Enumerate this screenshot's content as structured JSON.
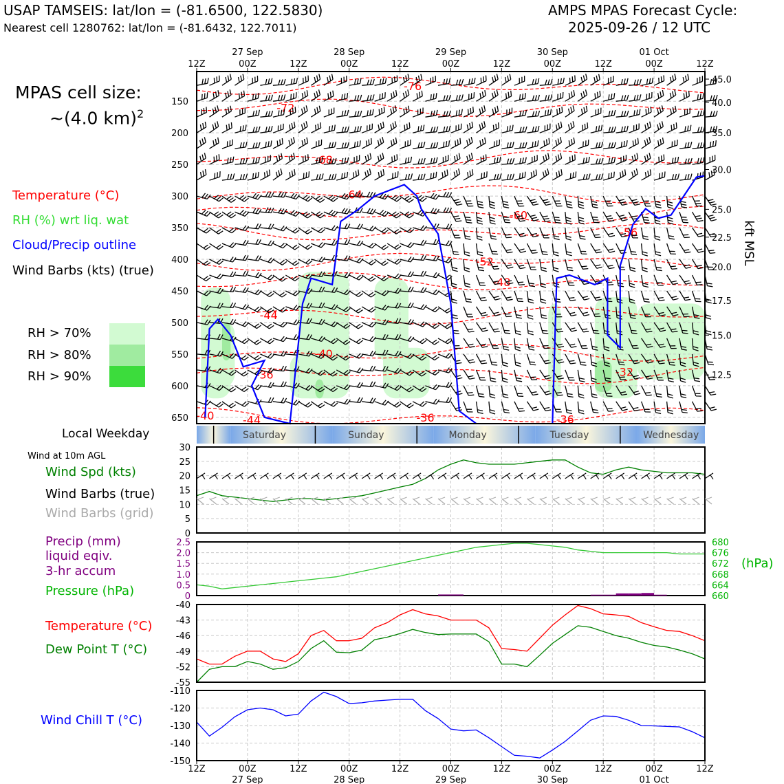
{
  "header": {
    "station": "USAP TAMSEIS: lat/lon = (-81.6500, 122.5830)",
    "nearest": "Nearest cell 1280762: lat/lon = (-81.6432, 122.7011)",
    "cycle_title": "AMPS MPAS Forecast Cycle:",
    "cycle_time": "2025-09-26 / 12 UTC"
  },
  "cell_size": {
    "line1": "MPAS cell size:",
    "line2": "~(4.0 km)",
    "exp": "2"
  },
  "legend_main": {
    "temperature": "Temperature (°C)",
    "rh": "RH (%) wrt liq. wat",
    "cloud": "Cloud/Precip outline",
    "wind": "Wind Barbs (kts) (true)"
  },
  "rh_legend": [
    {
      "label": "RH > 70%",
      "color": "#d2fad2"
    },
    {
      "label": "RH > 80%",
      "color": "#a0eba0"
    },
    {
      "label": "RH > 90%",
      "color": "#3cdc3c"
    }
  ],
  "colors": {
    "temp": "#ff0000",
    "rh": "#32dc32",
    "cloud": "#0000ff",
    "wind": "#000000",
    "grid_wind": "#aaaaaa",
    "precip": "#800080",
    "pressure": "#00b400",
    "dewpoint": "#008000",
    "windchill": "#0000ff"
  },
  "time_axis": {
    "top_ticks": [
      "12Z",
      "00Z",
      "12Z",
      "00Z",
      "12Z",
      "00Z",
      "12Z",
      "00Z",
      "12Z",
      "00Z",
      "12Z"
    ],
    "dates": [
      "27 Sep",
      "28 Sep",
      "29 Sep",
      "30 Sep",
      "01 Oct"
    ],
    "bottom_ticks": [
      "12Z",
      "00Z",
      "12Z",
      "00Z",
      "12Z",
      "00Z",
      "12Z",
      "00Z",
      "12Z",
      "00Z",
      "12Z"
    ]
  },
  "weekday": {
    "title": "Local Weekday",
    "days": [
      "Saturday",
      "Sunday",
      "Monday",
      "Tuesday",
      "Wednesday"
    ]
  },
  "panel_wind": {
    "title": "Wind at 10m AGL",
    "legend_speed": "Wind Spd (kts)",
    "legend_true": "Wind Barbs (true)",
    "legend_grid": "Wind Barbs (grid)"
  },
  "panel_precip": {
    "legend_precip_1": "Precip (mm)",
    "legend_precip_2": "liquid eqiv.",
    "legend_precip_3": "3-hr accum",
    "legend_pressure": "Pressure (hPa)",
    "right_unit": "(hPa)"
  },
  "panel_temp": {
    "legend_temp": "Temperature (°C)",
    "legend_dew": "Dew Point T (°C)"
  },
  "panel_chill": {
    "legend": "Wind Chill T (°C)"
  },
  "right_axis_label": "kft MSL",
  "chart_data": [
    {
      "type": "heatmap",
      "name": "vertical cross-section",
      "x_hours": [
        0,
        120
      ],
      "pressure_ticks": [
        "150",
        "200",
        "250",
        "300",
        "350",
        "400",
        "450",
        "500",
        "550",
        "600",
        "650"
      ],
      "pressure_values": [
        150,
        200,
        250,
        300,
        350,
        400,
        450,
        500,
        550,
        600,
        650
      ],
      "ylim_hpa": [
        103,
        660
      ],
      "height_ticks": [
        "45.0",
        "40.0",
        "35.0",
        "30.0",
        "25.0",
        "22.5",
        "20.0",
        "17.5",
        "15.0",
        "12.5"
      ],
      "height_ticks_hpa": [
        115,
        152,
        200,
        258,
        321,
        365,
        412,
        465,
        520,
        583
      ],
      "temperature_labels": [
        {
          "text": "-76",
          "t": 51,
          "p": 126
        },
        {
          "text": "-72",
          "t": 21,
          "p": 160
        },
        {
          "text": "-68",
          "t": 30,
          "p": 242
        },
        {
          "text": "-64",
          "t": 37,
          "p": 297
        },
        {
          "text": "-60",
          "t": 76,
          "p": 330
        },
        {
          "text": "-56",
          "t": 102,
          "p": 357
        },
        {
          "text": "-52",
          "t": 68,
          "p": 403
        },
        {
          "text": "-48",
          "t": 72,
          "p": 436
        },
        {
          "text": "-44",
          "t": 17,
          "p": 488
        },
        {
          "text": "-40",
          "t": 30,
          "p": 549
        },
        {
          "text": "-36",
          "t": 16,
          "p": 582
        },
        {
          "text": "-32",
          "t": 101,
          "p": 578
        },
        {
          "text": "-40",
          "t": 2,
          "p": 647
        },
        {
          "text": "-36",
          "t": 54,
          "p": 650
        },
        {
          "text": "-36",
          "t": 87,
          "p": 653
        },
        {
          "text": "-44",
          "t": 13,
          "p": 654
        }
      ],
      "wind_barbs_true": "wind barbs every 3h at 25 hPa levels"
    },
    {
      "type": "line",
      "name": "10m wind",
      "ylim": [
        0,
        30
      ],
      "yticks": [
        "0",
        "5",
        "10",
        "15",
        "20",
        "25",
        "30"
      ],
      "x_hours": [
        0,
        3,
        6,
        9,
        12,
        15,
        18,
        21,
        24,
        27,
        30,
        33,
        36,
        39,
        42,
        45,
        48,
        51,
        54,
        57,
        60,
        63,
        66,
        69,
        72,
        75,
        78,
        81,
        84,
        87,
        90,
        93,
        96,
        99,
        102,
        105,
        108,
        111,
        114,
        117,
        120
      ],
      "series": [
        {
          "name": "Wind Spd (kts)",
          "values": [
            13,
            14.5,
            13,
            12.5,
            12,
            11.5,
            11,
            11.5,
            12,
            12,
            11.5,
            12,
            12.5,
            13,
            14,
            15,
            16,
            17,
            19,
            22,
            24,
            25.5,
            24.5,
            24,
            24,
            24,
            24.5,
            25,
            25.5,
            25.5,
            23,
            21,
            20.5,
            22,
            23,
            22,
            21.5,
            21,
            21,
            21,
            20.5
          ]
        }
      ]
    },
    {
      "type": "line",
      "name": "precip and pressure",
      "ylim_precip": [
        0,
        2.5
      ],
      "yticks_precip": [
        "0",
        "0.5",
        "1.0",
        "1.5",
        "2.0",
        "2.5"
      ],
      "ylim_pressure": [
        660,
        680
      ],
      "yticks_pressure": [
        "660",
        "664",
        "668",
        "672",
        "676",
        "680"
      ],
      "x_hours": [
        0,
        3,
        6,
        9,
        12,
        15,
        18,
        21,
        24,
        27,
        30,
        33,
        36,
        39,
        42,
        45,
        48,
        51,
        54,
        57,
        60,
        63,
        66,
        69,
        72,
        75,
        78,
        81,
        84,
        87,
        90,
        93,
        96,
        99,
        102,
        105,
        108,
        111,
        114,
        117,
        120
      ],
      "series": [
        {
          "name": "Pressure (hPa)",
          "values": [
            664,
            663.5,
            662.5,
            663,
            663.5,
            664,
            664.5,
            665,
            665.5,
            666,
            666.5,
            667,
            668,
            669,
            670,
            671,
            672,
            673,
            674,
            675,
            676,
            677,
            678,
            678.5,
            679,
            679.5,
            679.5,
            679,
            678.5,
            678,
            677,
            676.5,
            676,
            676,
            676,
            676,
            676,
            676,
            675.5,
            675.5,
            675.5
          ]
        },
        {
          "name": "Precip (mm)",
          "values": [
            0,
            0,
            0,
            0,
            0,
            0,
            0,
            0,
            0,
            0,
            0,
            0,
            0,
            0,
            0,
            0,
            0,
            0,
            0,
            0.05,
            0.05,
            0,
            0,
            0,
            0,
            0,
            0,
            0,
            0,
            0,
            0,
            0.04,
            0.04,
            0.1,
            0.1,
            0.12,
            0.04,
            0,
            0,
            0,
            0
          ]
        }
      ]
    },
    {
      "type": "line",
      "name": "temperature",
      "ylim": [
        -55,
        -40
      ],
      "yticks": [
        "-55",
        "-52",
        "-49",
        "-46",
        "-43",
        "-40"
      ],
      "x_hours": [
        0,
        3,
        6,
        9,
        12,
        15,
        18,
        21,
        24,
        27,
        30,
        33,
        36,
        39,
        42,
        45,
        48,
        51,
        54,
        57,
        60,
        63,
        66,
        69,
        72,
        75,
        78,
        81,
        84,
        87,
        90,
        93,
        96,
        99,
        102,
        105,
        108,
        111,
        114,
        117,
        120
      ],
      "series": [
        {
          "name": "Temperature (°C)",
          "values": [
            -50.5,
            -51.5,
            -51.5,
            -50,
            -49,
            -49,
            -50.5,
            -51,
            -49.5,
            -46,
            -45,
            -47,
            -47,
            -46.5,
            -44.5,
            -43.5,
            -42,
            -41,
            -41.8,
            -42.2,
            -43,
            -43,
            -43,
            -44.5,
            -48.5,
            -48.7,
            -49,
            -46.5,
            -44,
            -42,
            -40.2,
            -40.8,
            -41.8,
            -42,
            -42.3,
            -43.5,
            -44.3,
            -45,
            -45.2,
            -46,
            -47
          ]
        },
        {
          "name": "Dew Point T (°C)",
          "values": [
            -55,
            -52.5,
            -52,
            -52,
            -51,
            -51.5,
            -52.5,
            -52.2,
            -51,
            -48.5,
            -47,
            -49.2,
            -49.3,
            -48.8,
            -46.8,
            -46.3,
            -45.6,
            -44.8,
            -45.4,
            -45.8,
            -45.7,
            -45.7,
            -45.7,
            -47.2,
            -51.5,
            -51.5,
            -52,
            -49.8,
            -47.5,
            -45.8,
            -44.1,
            -44.4,
            -45.2,
            -46,
            -46.5,
            -47.3,
            -47.9,
            -48.2,
            -48.8,
            -49.5,
            -50.5
          ]
        }
      ]
    },
    {
      "type": "line",
      "name": "wind chill",
      "ylim": [
        -150,
        -110
      ],
      "yticks": [
        "-150",
        "-140",
        "-130",
        "-120",
        "-110"
      ],
      "x_hours": [
        0,
        3,
        6,
        9,
        12,
        15,
        18,
        21,
        24,
        27,
        30,
        33,
        36,
        39,
        42,
        45,
        48,
        51,
        54,
        57,
        60,
        63,
        66,
        69,
        72,
        75,
        78,
        81,
        84,
        87,
        90,
        93,
        96,
        99,
        102,
        105,
        108,
        111,
        114,
        117,
        120
      ],
      "series": [
        {
          "name": "Wind Chill T (°C)",
          "values": [
            -128,
            -136,
            -131,
            -125,
            -121,
            -120,
            -121,
            -124.5,
            -123.5,
            -116,
            -111,
            -113.5,
            -117.5,
            -117,
            -116,
            -115.5,
            -115,
            -115,
            -121.5,
            -126,
            -132,
            -133,
            -132.5,
            -137,
            -142,
            -147,
            -147.5,
            -148.5,
            -144,
            -139,
            -133,
            -127,
            -124.5,
            -124.8,
            -127,
            -130,
            -130.2,
            -130.5,
            -130.8,
            -133.5,
            -137
          ]
        }
      ]
    }
  ]
}
